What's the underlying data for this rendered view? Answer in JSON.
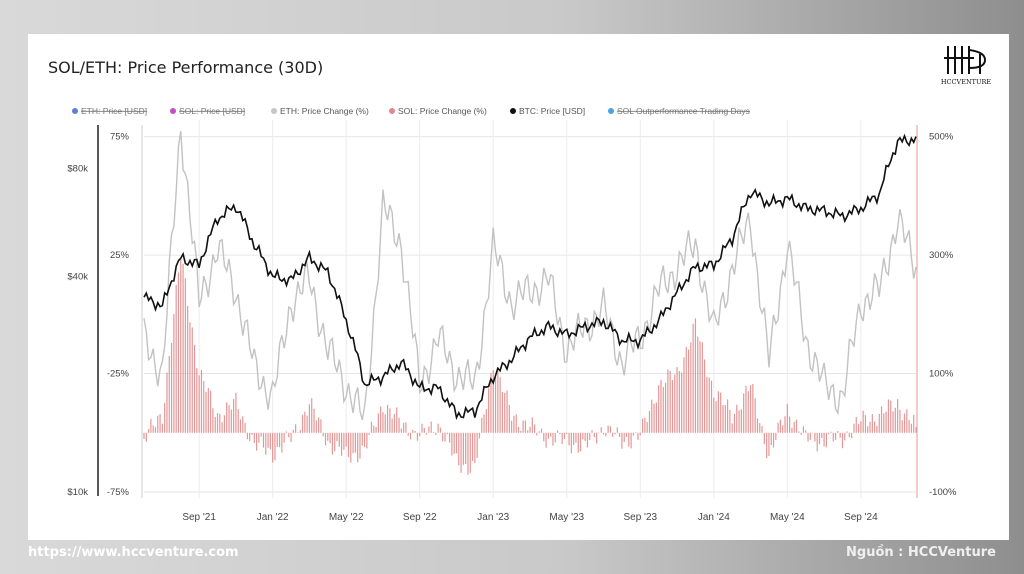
{
  "footer": {
    "website": "https://www.hccventure.com",
    "source": "Nguồn : HCCVenture"
  },
  "logo": {
    "text": "HCCVENTURE"
  },
  "chart_data": {
    "type": "line",
    "title": "SOL/ETH: Price Performance (30D)",
    "legend_position": "top",
    "legend": [
      {
        "name": "ETH: Price [USD]",
        "color": "#5b7fd6",
        "hidden": true
      },
      {
        "name": "SOL: Price [USD]",
        "color": "#c04fc8",
        "hidden": true
      },
      {
        "name": "ETH: Price Change (%)",
        "color": "#c6c6c6",
        "hidden": false
      },
      {
        "name": "SOL: Price Change (%)",
        "color": "#e08a8a",
        "hidden": false
      },
      {
        "name": "BTC: Price [USD]",
        "color": "#111111",
        "hidden": false
      },
      {
        "name": "SOL Outperformance Trading Days",
        "color": "#4aa3df",
        "hidden": true
      }
    ],
    "x_ticks": [
      "Sep '21",
      "Jan '22",
      "May '22",
      "Sep '22",
      "Jan '23",
      "May '23",
      "Sep '23",
      "Jan '24",
      "May '24",
      "Sep '24"
    ],
    "x_range": [
      "2021-06",
      "2024-12"
    ],
    "y_btc_axis": {
      "scale": "log",
      "ticks": [
        "$80k",
        "$40k",
        "$10k"
      ]
    },
    "y_eth_axis": {
      "ticks": [
        "75%",
        "25%",
        "-25%",
        "-75%"
      ],
      "range": [
        -75,
        75
      ]
    },
    "y_sol_axis": {
      "ticks": [
        "500%",
        "300%",
        "100%",
        "-100%"
      ],
      "range": [
        -100,
        500
      ]
    },
    "grid": true,
    "series": [
      {
        "name": "BTC: Price [USD]",
        "x": [
          "2021-06",
          "2021-07",
          "2021-08",
          "2021-09",
          "2021-10",
          "2021-11",
          "2021-12",
          "2022-01",
          "2022-02",
          "2022-03",
          "2022-04",
          "2022-05",
          "2022-06",
          "2022-07",
          "2022-08",
          "2022-09",
          "2022-10",
          "2022-11",
          "2022-12",
          "2023-01",
          "2023-02",
          "2023-03",
          "2023-04",
          "2023-05",
          "2023-06",
          "2023-07",
          "2023-08",
          "2023-09",
          "2023-10",
          "2023-11",
          "2023-12",
          "2024-01",
          "2024-02",
          "2024-03",
          "2024-04",
          "2024-05",
          "2024-06",
          "2024-07",
          "2024-08",
          "2024-09",
          "2024-10",
          "2024-11",
          "2024-12"
        ],
        "values": [
          35000,
          33000,
          45000,
          43000,
          58000,
          63000,
          49000,
          40000,
          39000,
          45000,
          41000,
          30000,
          20000,
          21000,
          23000,
          19500,
          19500,
          16500,
          16800,
          21000,
          23500,
          27000,
          29000,
          27500,
          29000,
          30000,
          26500,
          26500,
          30000,
          36000,
          42500,
          43000,
          51000,
          69000,
          64000,
          66000,
          62000,
          61000,
          59000,
          62000,
          68000,
          95000,
          97000
        ]
      },
      {
        "name": "ETH: Price Change (%)",
        "x": [
          "2021-06",
          "2021-07",
          "2021-08",
          "2021-09",
          "2021-10",
          "2021-11",
          "2021-12",
          "2022-01",
          "2022-02",
          "2022-03",
          "2022-04",
          "2022-05",
          "2022-06",
          "2022-07",
          "2022-08",
          "2022-09",
          "2022-10",
          "2022-11",
          "2022-12",
          "2023-01",
          "2023-02",
          "2023-03",
          "2023-04",
          "2023-05",
          "2023-06",
          "2023-07",
          "2023-08",
          "2023-09",
          "2023-10",
          "2023-11",
          "2023-12",
          "2024-01",
          "2024-02",
          "2024-03",
          "2024-04",
          "2024-05",
          "2024-06",
          "2024-07",
          "2024-08",
          "2024-09",
          "2024-10",
          "2024-11",
          "2024-12"
        ],
        "values": [
          -10,
          -25,
          80,
          5,
          28,
          10,
          -22,
          -35,
          5,
          15,
          -15,
          -30,
          -45,
          45,
          30,
          -30,
          -10,
          -25,
          -30,
          28,
          5,
          10,
          15,
          -15,
          -5,
          2,
          -20,
          -10,
          10,
          20,
          30,
          -8,
          20,
          40,
          -20,
          30,
          -10,
          -30,
          -35,
          5,
          10,
          40,
          20
        ]
      },
      {
        "name": "SOL: Price Change (%)",
        "x": [
          "2021-06",
          "2021-07",
          "2021-08",
          "2021-09",
          "2021-10",
          "2021-11",
          "2021-12",
          "2022-01",
          "2022-02",
          "2022-03",
          "2022-04",
          "2022-05",
          "2022-06",
          "2022-07",
          "2022-08",
          "2022-09",
          "2022-10",
          "2022-11",
          "2022-12",
          "2023-01",
          "2023-02",
          "2023-03",
          "2023-04",
          "2023-05",
          "2023-06",
          "2023-07",
          "2023-08",
          "2023-09",
          "2023-10",
          "2023-11",
          "2023-12",
          "2024-01",
          "2024-02",
          "2024-03",
          "2024-04",
          "2024-05",
          "2024-06",
          "2024-07",
          "2024-08",
          "2024-09",
          "2024-10",
          "2024-11",
          "2024-12"
        ],
        "values": [
          -10,
          30,
          300,
          100,
          30,
          50,
          -20,
          -35,
          -10,
          50,
          -15,
          -40,
          -30,
          50,
          15,
          -5,
          15,
          -50,
          -60,
          120,
          30,
          10,
          -10,
          -15,
          -25,
          10,
          -15,
          -5,
          80,
          100,
          180,
          70,
          30,
          80,
          -40,
          40,
          -10,
          -15,
          -10,
          20,
          30,
          50,
          10
        ]
      }
    ]
  }
}
